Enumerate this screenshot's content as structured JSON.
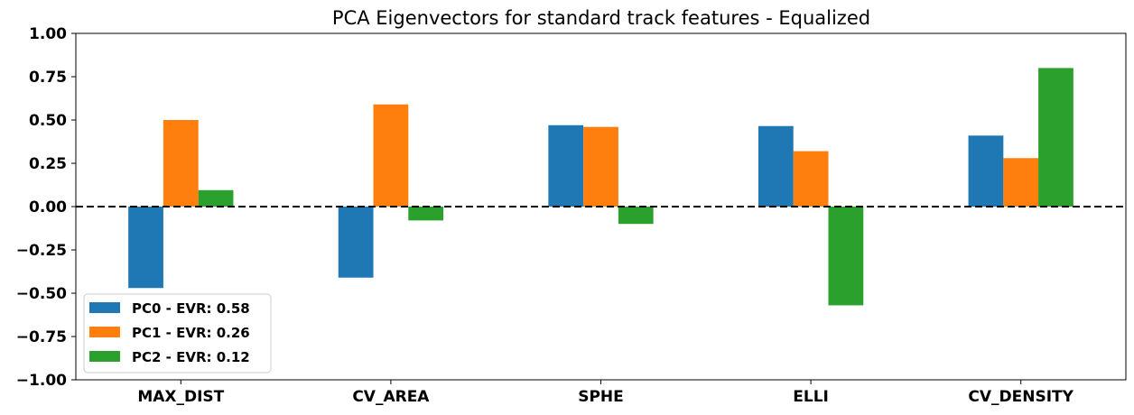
{
  "chart_data": {
    "type": "bar",
    "title": "PCA Eigenvectors for standard track features - Equalized",
    "categories": [
      "MAX_DIST",
      "CV_AREA",
      "SPHE",
      "ELLI",
      "CV_DENSITY"
    ],
    "series": [
      {
        "name": "PC0 - EVR: 0.58",
        "color": "#1f77b4",
        "values": [
          -0.47,
          -0.41,
          0.47,
          0.465,
          0.41
        ]
      },
      {
        "name": "PC1 - EVR: 0.26",
        "color": "#ff7f0e",
        "values": [
          0.5,
          0.59,
          0.46,
          0.32,
          0.28
        ]
      },
      {
        "name": "PC2 - EVR: 0.12",
        "color": "#2ca02c",
        "values": [
          0.095,
          -0.08,
          -0.1,
          -0.57,
          0.8
        ]
      }
    ],
    "ylim": [
      -1.0,
      1.0
    ],
    "yticks": [
      "1.00",
      "0.75",
      "0.50",
      "0.25",
      "0.00",
      "−0.25",
      "−0.50",
      "−0.75",
      "−1.00"
    ],
    "ytick_values": [
      1.0,
      0.75,
      0.5,
      0.25,
      0.0,
      -0.25,
      -0.5,
      -0.75,
      -1.0
    ],
    "reference_line": {
      "y": 0.0,
      "style": "dashed",
      "color": "#000000"
    },
    "grid": false,
    "legend_position": "lower-left"
  }
}
